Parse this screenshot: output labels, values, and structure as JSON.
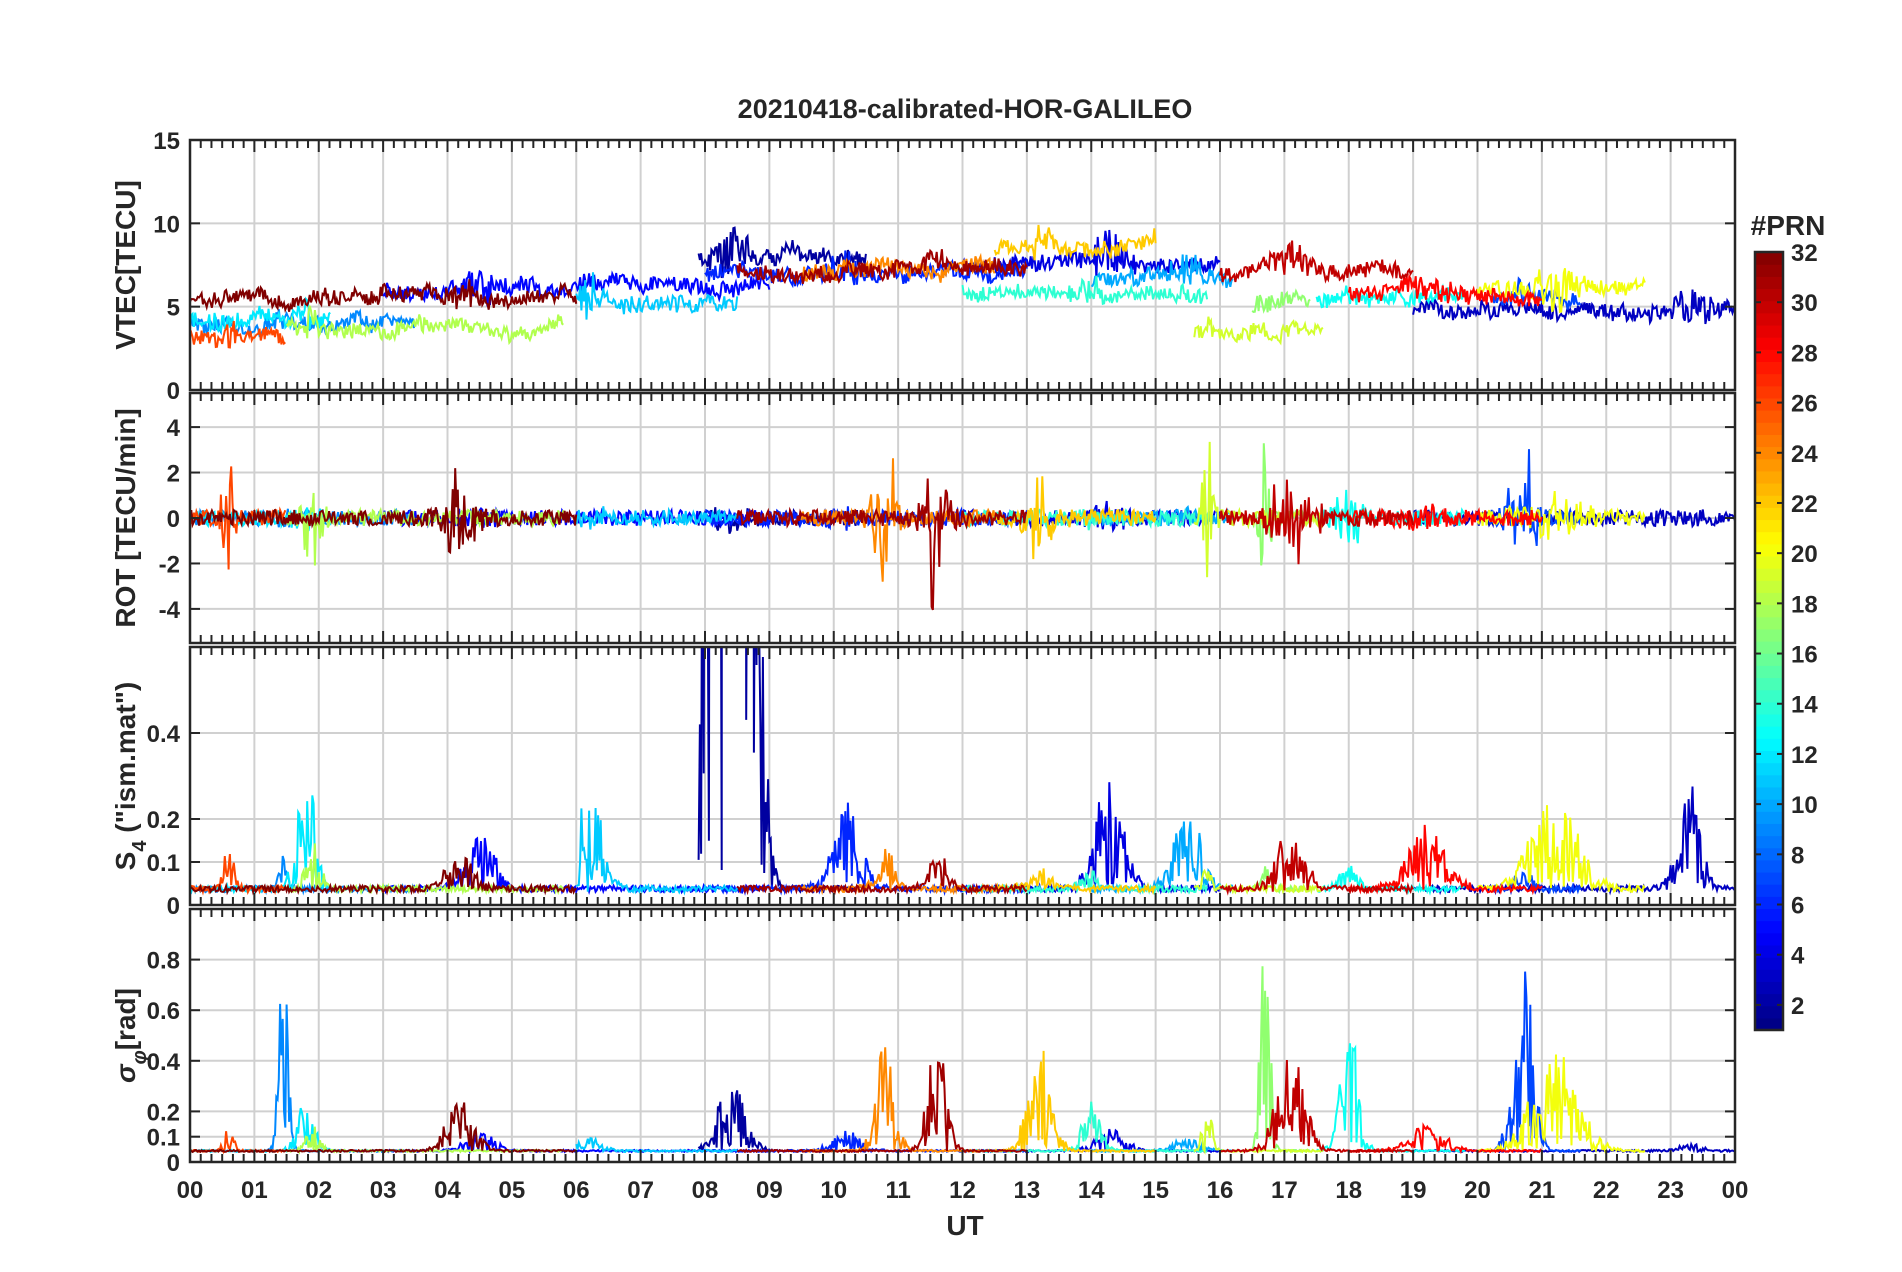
{
  "chart_data": {
    "figure_title": "20210418-calibrated-HOR-GALILEO",
    "x_axis": {
      "label": "UT",
      "lim": [
        0,
        24
      ],
      "tick_labels": [
        "00",
        "01",
        "02",
        "03",
        "04",
        "05",
        "06",
        "07",
        "08",
        "09",
        "10",
        "11",
        "12",
        "13",
        "14",
        "15",
        "16",
        "17",
        "18",
        "19",
        "20",
        "21",
        "22",
        "23",
        "00"
      ],
      "grid": true
    },
    "colorbar": {
      "title": "#PRN",
      "lim": [
        1,
        32
      ],
      "tick_labels": [
        "2",
        "4",
        "6",
        "8",
        "10",
        "12",
        "14",
        "16",
        "18",
        "20",
        "22",
        "24",
        "26",
        "28",
        "30",
        "32"
      ],
      "colormap": "jet"
    },
    "panels": [
      {
        "type": "line",
        "id": "vtec",
        "ylabel": "VTEC[TECU]",
        "ylim": [
          0,
          15
        ],
        "yticks": [
          0,
          5,
          10,
          15
        ],
        "ytick_labels": [
          "0",
          "5",
          "10",
          "15"
        ],
        "baseline": 5,
        "noise": 0.45,
        "mode": "level"
      },
      {
        "type": "line",
        "id": "rot",
        "ylabel": "ROT [TECU/min]",
        "ylim": [
          -5.5,
          5.5
        ],
        "yticks": [
          -4,
          -2,
          0,
          2,
          4
        ],
        "ytick_labels": [
          "-4",
          "-2",
          "0",
          "2",
          "4"
        ],
        "baseline": 0,
        "noise": 0.35,
        "mode": "symmetric"
      },
      {
        "type": "line",
        "id": "s4",
        "ylabel_main": "S",
        "ylabel_sub": "4",
        "ylabel_rest": "  (\"ism.mat\")",
        "ylim": [
          0,
          0.6
        ],
        "yticks": [
          0,
          0.1,
          0.2,
          0.4
        ],
        "ytick_labels": [
          "0",
          "0.1",
          "0.2",
          "0.4"
        ],
        "baseline": 0.03,
        "noise": 0.015,
        "mode": "positive"
      },
      {
        "type": "line",
        "id": "sigma",
        "ylabel_main": "σ",
        "ylabel_sub": "φ",
        "ylabel_rest": "[rad]",
        "ylim": [
          0,
          1
        ],
        "yticks": [
          0,
          0.1,
          0.2,
          0.4,
          0.6,
          0.8
        ],
        "ytick_labels": [
          "0",
          "0.1",
          "0.2",
          "0.4",
          "0.6",
          "0.8"
        ],
        "baseline": 0.04,
        "noise": 0.008,
        "mode": "positive"
      }
    ],
    "series": [
      {
        "prn": 2,
        "start": 7.9,
        "end": 10.5,
        "level": 8.0,
        "events": [
          [
            8.4,
            0.3,
            10.8,
            0.28,
            0.5
          ]
        ]
      },
      {
        "prn": 3,
        "start": 19.0,
        "end": 24.0,
        "level": 4.8,
        "events": [
          [
            23.3,
            0.25,
            0.25,
            0.03,
            0.1
          ]
        ]
      },
      {
        "prn": 4,
        "start": 12.0,
        "end": 16.0,
        "level": 7.5,
        "events": [
          [
            14.3,
            0.3,
            0.29,
            0.1,
            0.45
          ]
        ]
      },
      {
        "prn": 5,
        "start": 3.0,
        "end": 9.0,
        "level": 6.0,
        "events": [
          [
            4.5,
            0.3,
            0.15,
            0.08,
            0.3
          ]
        ]
      },
      {
        "prn": 6,
        "start": 8.0,
        "end": 13.0,
        "level": 7.0,
        "events": [
          [
            10.2,
            0.3,
            0.2,
            0.08,
            0.4
          ]
        ]
      },
      {
        "prn": 7,
        "start": 20.2,
        "end": 21.6,
        "level": 5.5,
        "events": [
          [
            20.7,
            0.2,
            0.05,
            1.0,
            5.0
          ]
        ]
      },
      {
        "prn": 9,
        "start": 0.0,
        "end": 3.5,
        "level": 4.0,
        "events": [
          [
            1.45,
            0.1,
            0.08,
            0.86,
            0.2
          ]
        ]
      },
      {
        "prn": 10,
        "start": 14.0,
        "end": 16.2,
        "level": 6.5,
        "events": [
          [
            15.5,
            0.3,
            0.18,
            0.05,
            0.2
          ]
        ]
      },
      {
        "prn": 11,
        "start": 6.0,
        "end": 8.5,
        "level": 5.0,
        "events": [
          [
            6.2,
            0.25,
            0.3,
            0.06,
            0.4
          ]
        ]
      },
      {
        "prn": 12,
        "start": 0.0,
        "end": 2.2,
        "level": 4.2,
        "events": [
          [
            1.8,
            0.2,
            0.28,
            0.2,
            0.4
          ]
        ]
      },
      {
        "prn": 13,
        "start": 17.5,
        "end": 19.8,
        "level": 5.5,
        "events": [
          [
            18.0,
            0.2,
            0.06,
            0.55,
            1.5
          ]
        ]
      },
      {
        "prn": 14,
        "start": 12.0,
        "end": 15.8,
        "level": 5.8,
        "events": [
          [
            14.0,
            0.2,
            0.05,
            0.2,
            0.3
          ]
        ]
      },
      {
        "prn": 17,
        "start": 16.5,
        "end": 17.4,
        "level": 5.0,
        "events": [
          [
            16.7,
            0.1,
            0.06,
            1.0,
            5.5
          ]
        ]
      },
      {
        "prn": 18,
        "start": 1.5,
        "end": 5.8,
        "level": 3.8,
        "events": [
          [
            1.9,
            0.15,
            0.12,
            0.1,
            2.5
          ]
        ]
      },
      {
        "prn": 19,
        "start": 15.6,
        "end": 17.6,
        "level": 3.5,
        "events": [
          [
            15.8,
            0.1,
            0.05,
            0.2,
            5.5
          ]
        ]
      },
      {
        "prn": 20,
        "start": 20.0,
        "end": 22.6,
        "level": 6.0,
        "events": [
          [
            21.2,
            0.5,
            0.22,
            0.4,
            1.0
          ]
        ]
      },
      {
        "prn": 22,
        "start": 12.5,
        "end": 15.0,
        "level": 8.5,
        "events": [
          [
            13.2,
            0.25,
            0.06,
            0.44,
            3.0
          ]
        ]
      },
      {
        "prn": 24,
        "start": 9.5,
        "end": 12.5,
        "level": 7.0,
        "events": [
          [
            10.8,
            0.2,
            0.1,
            0.45,
            4.0
          ]
        ]
      },
      {
        "prn": 26,
        "start": 0.0,
        "end": 1.5,
        "level": 3.0,
        "events": [
          [
            0.6,
            0.1,
            0.12,
            0.1,
            5.0
          ]
        ]
      },
      {
        "prn": 28,
        "start": 18.0,
        "end": 21.0,
        "level": 5.8,
        "events": [
          [
            19.2,
            0.4,
            0.15,
            0.1,
            0.5
          ]
        ]
      },
      {
        "prn": 30,
        "start": 16.0,
        "end": 19.0,
        "level": 7.0,
        "events": [
          [
            17.1,
            0.3,
            0.15,
            0.4,
            4.0
          ]
        ]
      },
      {
        "prn": 31,
        "start": 8.5,
        "end": 13.0,
        "level": 7.2,
        "events": [
          [
            11.6,
            0.2,
            0.1,
            0.45,
            4.5
          ]
        ]
      },
      {
        "prn": 32,
        "start": 0.0,
        "end": 6.0,
        "level": 5.5,
        "events": [
          [
            4.2,
            0.3,
            0.08,
            0.2,
            2.5
          ]
        ]
      }
    ]
  }
}
